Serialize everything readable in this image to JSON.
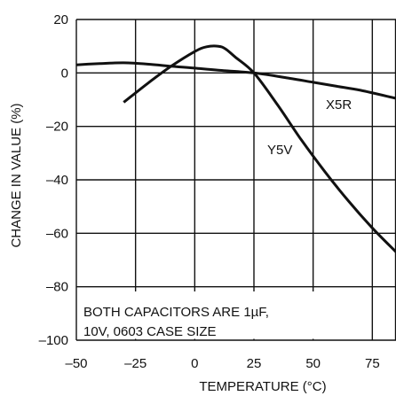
{
  "chart_data": {
    "type": "line",
    "title": "",
    "xlabel": "TEMPERATURE (°C)",
    "ylabel": "CHANGE IN VALUE (%)",
    "xlim": [
      -50,
      85
    ],
    "ylim": [
      -100,
      20
    ],
    "xticks": [
      -50,
      -25,
      0,
      25,
      50,
      75
    ],
    "xtick_labels": [
      "–50",
      "–25",
      "0",
      "25",
      "50",
      "75"
    ],
    "yticks": [
      -100,
      -80,
      -60,
      -40,
      -20,
      0,
      20
    ],
    "ytick_labels": [
      "–100",
      "–80",
      "–60",
      "–40",
      "–20",
      "0",
      "20"
    ],
    "grid": true,
    "annotation": [
      "BOTH CAPACITORS ARE 1µF,",
      "10V, 0603 CASE SIZE"
    ],
    "series": [
      {
        "name": "X5R",
        "x": [
          -50,
          -40,
          -30,
          -20,
          -10,
          0,
          10,
          25,
          40,
          50,
          60,
          70,
          85
        ],
        "y": [
          3,
          3.5,
          3.8,
          3.3,
          2.5,
          1.8,
          1,
          0,
          -2,
          -3.5,
          -5,
          -6.5,
          -9.5
        ]
      },
      {
        "name": "Y5V",
        "x": [
          -30,
          -20,
          -10,
          0,
          5,
          10,
          13,
          17,
          25,
          35,
          45,
          55,
          65,
          75,
          85
        ],
        "y": [
          -11,
          -4,
          2.5,
          8,
          9.8,
          10,
          9,
          6,
          0,
          -12,
          -25,
          -37,
          -48,
          -58,
          -67
        ]
      }
    ]
  }
}
